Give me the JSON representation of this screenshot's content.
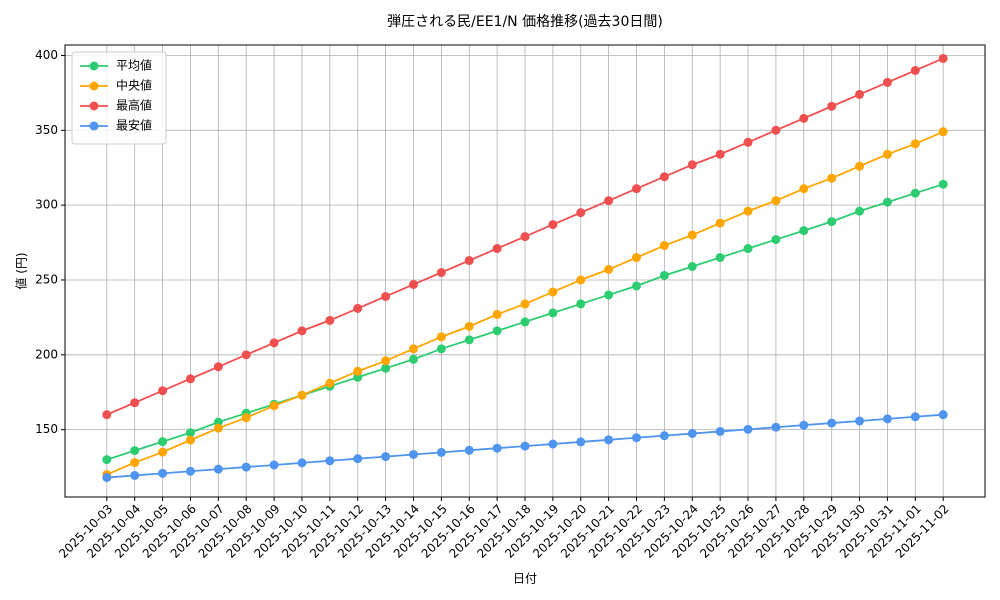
{
  "chart_data": {
    "type": "line",
    "title": "弾圧される民/EE1/N 価格推移(過去30日間)",
    "xlabel": "日付",
    "ylabel": "値 (円)",
    "x": [
      "2025-10-03",
      "2025-10-04",
      "2025-10-05",
      "2025-10-06",
      "2025-10-07",
      "2025-10-08",
      "2025-10-09",
      "2025-10-10",
      "2025-10-11",
      "2025-10-12",
      "2025-10-13",
      "2025-10-14",
      "2025-10-15",
      "2025-10-16",
      "2025-10-17",
      "2025-10-18",
      "2025-10-19",
      "2025-10-20",
      "2025-10-21",
      "2025-10-22",
      "2025-10-23",
      "2025-10-24",
      "2025-10-25",
      "2025-10-26",
      "2025-10-27",
      "2025-10-28",
      "2025-10-29",
      "2025-10-30",
      "2025-10-31",
      "2025-11-01",
      "2025-11-02"
    ],
    "series": [
      {
        "name": "平均値",
        "color": "#2ecc71",
        "values": [
          130,
          136,
          142,
          148,
          155,
          161,
          167,
          173,
          179,
          185,
          191,
          197,
          204,
          210,
          216,
          222,
          228,
          234,
          240,
          246,
          253,
          259,
          265,
          271,
          277,
          283,
          289,
          296,
          302,
          308,
          314
        ]
      },
      {
        "name": "中央値",
        "color": "#ffa500",
        "values": [
          120,
          128,
          135,
          143,
          151,
          158,
          166,
          173,
          181,
          189,
          196,
          204,
          212,
          219,
          227,
          234,
          242,
          250,
          257,
          265,
          273,
          280,
          288,
          296,
          303,
          311,
          318,
          326,
          334,
          341,
          349
        ]
      },
      {
        "name": "最高値",
        "color": "#ef4f4f",
        "values": [
          160,
          168,
          176,
          184,
          192,
          200,
          208,
          216,
          223,
          231,
          239,
          247,
          255,
          263,
          271,
          279,
          287,
          295,
          303,
          311,
          319,
          327,
          334,
          342,
          350,
          358,
          366,
          374,
          382,
          390,
          398
        ]
      },
      {
        "name": "最安値",
        "color": "#4f94ef",
        "values": [
          118,
          119.4,
          120.8,
          122.2,
          123.6,
          125,
          126.4,
          127.8,
          129.2,
          130.6,
          132,
          133.4,
          134.8,
          136.2,
          137.6,
          139,
          140.4,
          141.8,
          143.2,
          144.6,
          146,
          147.4,
          148.8,
          150.2,
          151.6,
          153,
          154.4,
          155.8,
          157.2,
          158.6,
          160
        ]
      }
    ],
    "ylim": [
      105,
      407
    ],
    "yticks": [
      150,
      200,
      250,
      300,
      350,
      400
    ],
    "grid": true,
    "legend": "upper left",
    "markers": true
  }
}
